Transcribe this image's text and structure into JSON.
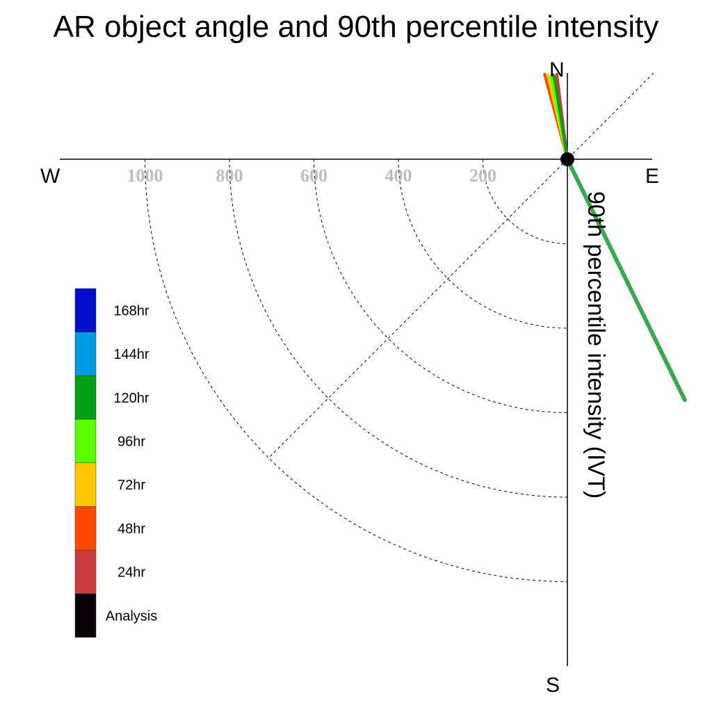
{
  "chart_data": {
    "type": "polar-vector",
    "title": "AR object angle and 90th percentile intensity",
    "radial_label": "90th percentile intensity (IVT)",
    "directions": {
      "n": "N",
      "e": "E",
      "s": "S",
      "w": "W"
    },
    "radial_ticks": [
      200,
      400,
      600,
      800,
      1000
    ],
    "rlim": [
      0,
      1200
    ],
    "grid": true,
    "legend": [
      {
        "name": "168hr",
        "color": "#0010c8"
      },
      {
        "name": "144hr",
        "color": "#009ae0"
      },
      {
        "name": "120hr",
        "color": "#00a014"
      },
      {
        "name": "96hr",
        "color": "#5aff00"
      },
      {
        "name": "72hr",
        "color": "#ffc800"
      },
      {
        "name": "48hr",
        "color": "#ff4800"
      },
      {
        "name": "24hr",
        "color": "#cd3c3c"
      },
      {
        "name": "Analysis",
        "color": "#0a0008"
      }
    ],
    "series": [
      {
        "name": "Analysis",
        "angle_deg": 10,
        "intensity": 203,
        "color": "#0a0008"
      },
      {
        "name": "24hr",
        "angle_deg": 7,
        "intensity": 203,
        "color": "#cd3c3c"
      },
      {
        "name": "48hr",
        "angle_deg": 15,
        "intensity": 208,
        "color": "#ff4800"
      },
      {
        "name": "72hr",
        "angle_deg": 13,
        "intensity": 205,
        "color": "#ffc800"
      },
      {
        "name": "96hr",
        "angle_deg": 11,
        "intensity": 202,
        "color": "#5aff00"
      },
      {
        "name": "120hr",
        "angle_deg": 9,
        "intensity": 200,
        "color": "#00a014"
      },
      {
        "name": "120hr",
        "angle_deg": 206,
        "intensity": 634,
        "color": "#3aa850"
      }
    ]
  }
}
